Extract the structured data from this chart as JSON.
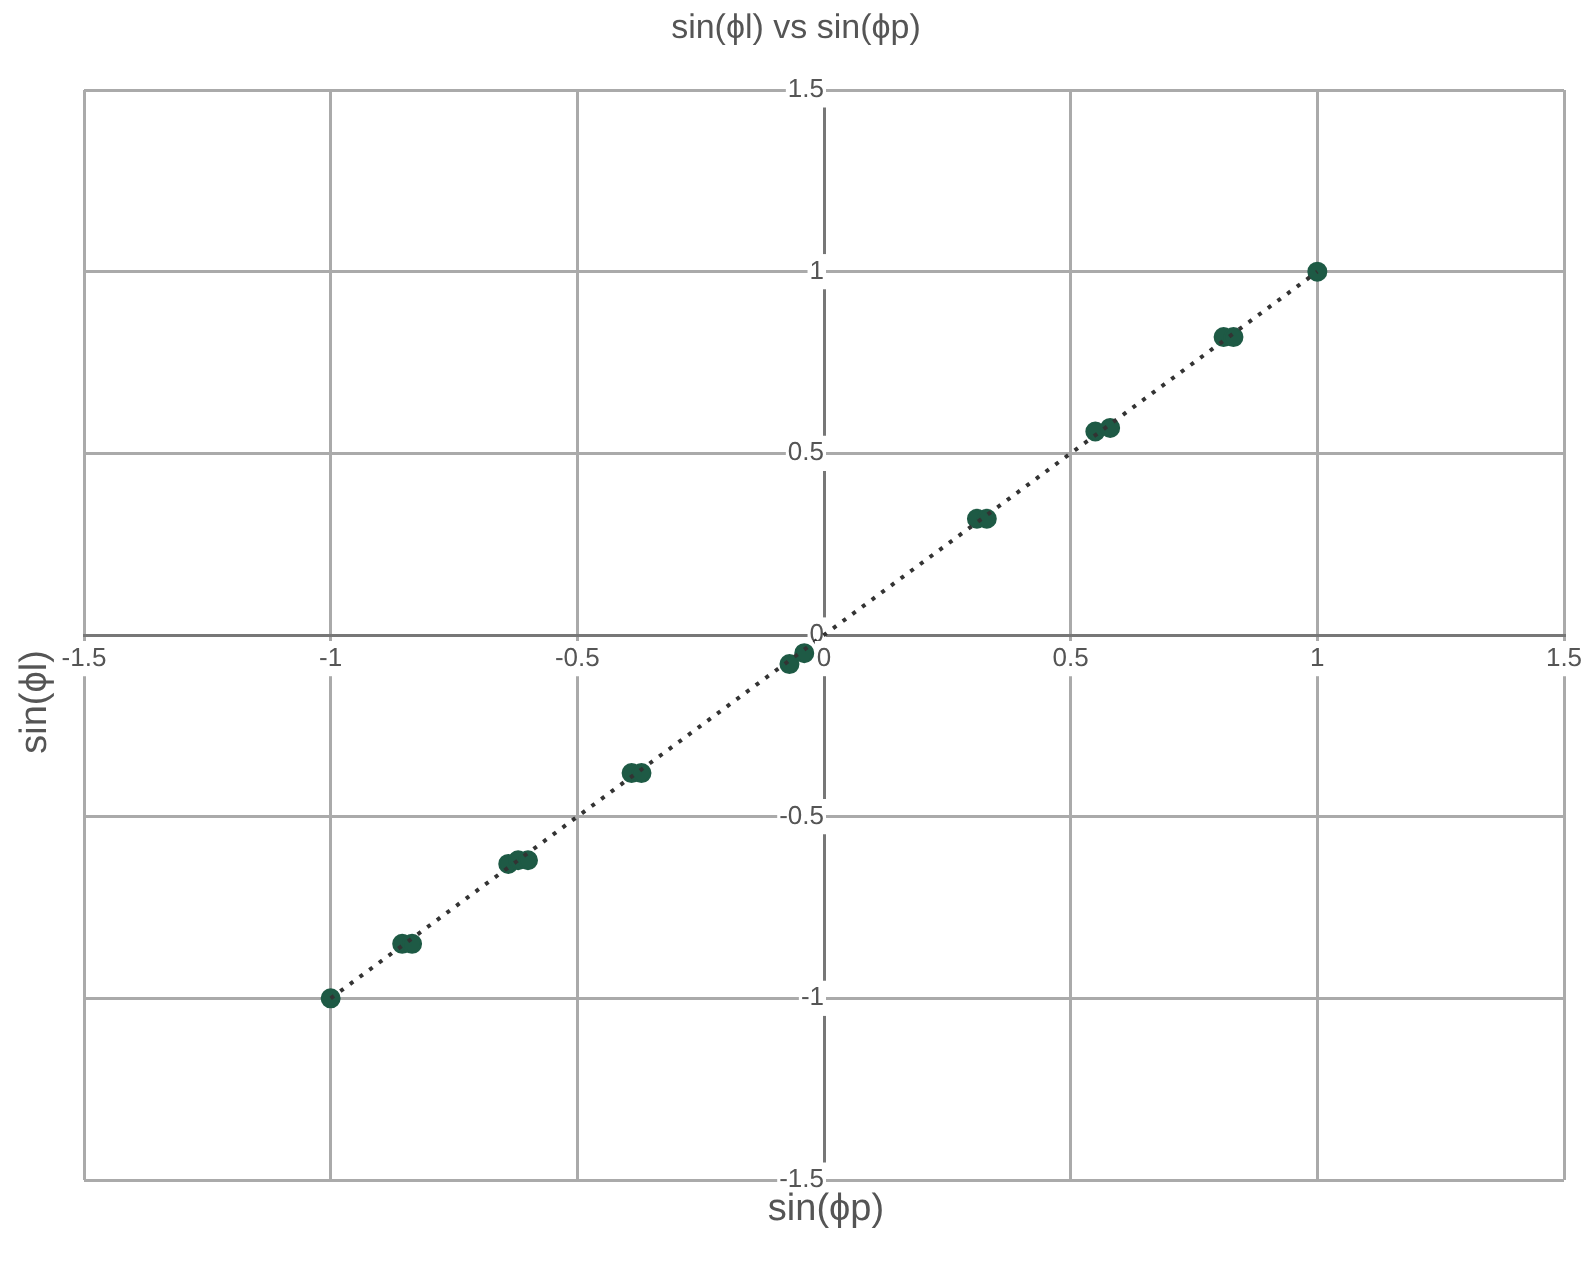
{
  "chart_data": {
    "type": "scatter",
    "title": "sin(ϕl) vs  sin(ϕp)",
    "xlabel": "sin(ϕp)",
    "ylabel": "sin(ϕl)",
    "xlim": [
      -1.5,
      1.5
    ],
    "xticks": [
      -1.5,
      -1,
      -0.5,
      0,
      0.5,
      1,
      1.5
    ],
    "ylim": [
      -1.5,
      1.5
    ],
    "yticks": [
      -1.5,
      -1,
      -0.5,
      0,
      0.5,
      1,
      1.5
    ],
    "grid": true,
    "legend": false,
    "marker": "circle",
    "series": [
      {
        "type": "scatter",
        "color": "#1e5a45",
        "x": [
          -1,
          -0.855,
          -0.835,
          -0.64,
          -0.62,
          -0.6,
          -0.39,
          -0.37,
          -0.07,
          -0.04,
          0.31,
          0.33,
          0.55,
          0.58,
          0.81,
          0.83,
          1
        ],
        "values": [
          -1,
          -0.85,
          -0.85,
          -0.63,
          -0.62,
          -0.62,
          -0.38,
          -0.38,
          -0.08,
          -0.05,
          0.32,
          0.32,
          0.56,
          0.57,
          0.82,
          0.82,
          1
        ]
      },
      {
        "type": "line",
        "color": "#333333",
        "line_style": "dotted",
        "marker": "none",
        "x": [
          -1,
          1
        ],
        "values": [
          -1,
          1
        ]
      }
    ]
  }
}
